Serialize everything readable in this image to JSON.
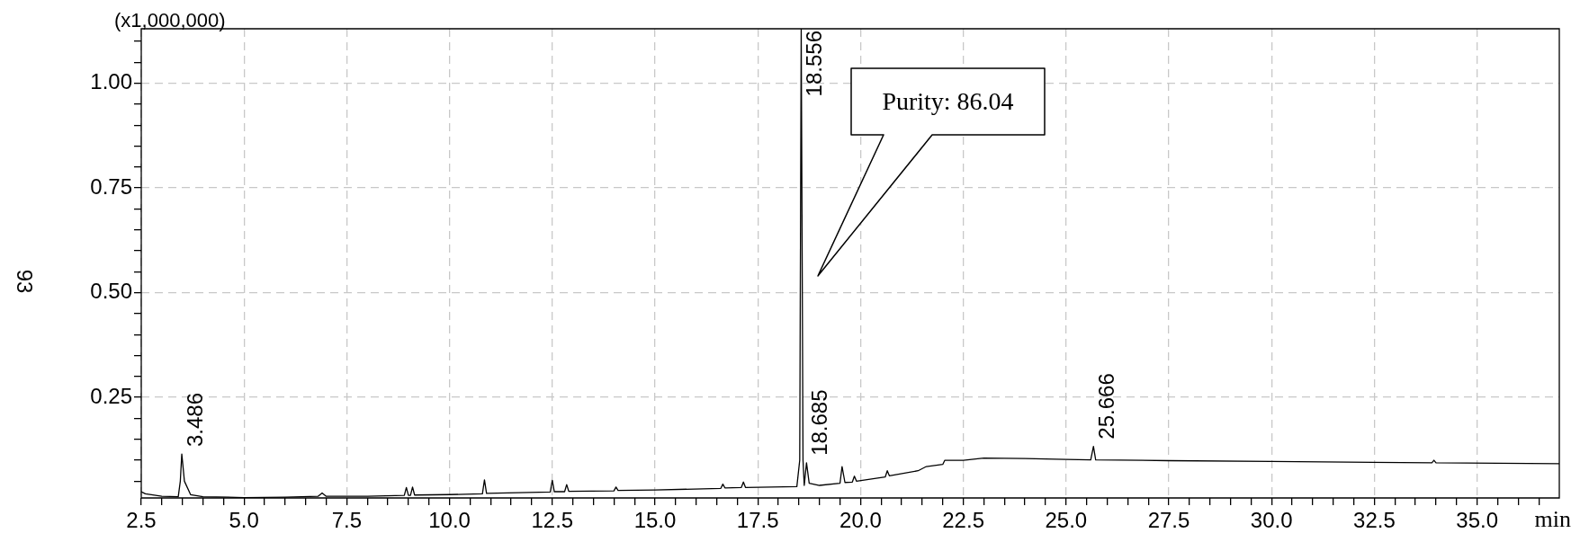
{
  "chart_data": {
    "type": "line",
    "xlabel": "min",
    "ylabel": "93",
    "x": [
      2.5,
      2.6,
      3.0,
      3.4,
      3.45,
      3.486,
      3.55,
      3.7,
      4.0,
      5.0,
      6.0,
      6.8,
      6.9,
      7.0,
      8.0,
      8.9,
      8.95,
      9.0,
      9.05,
      9.1,
      9.15,
      10.0,
      10.8,
      10.85,
      10.9,
      12.45,
      12.5,
      12.55,
      12.8,
      12.85,
      12.9,
      14.0,
      14.05,
      14.1,
      15.0,
      16.6,
      16.65,
      16.7,
      17.1,
      17.15,
      17.2,
      18.45,
      18.52,
      18.556,
      18.6,
      18.63,
      18.685,
      18.75,
      19.0,
      19.5,
      19.55,
      19.62,
      19.8,
      19.85,
      19.9,
      20.6,
      20.65,
      20.7,
      21.4,
      21.6,
      22.0,
      22.05,
      22.5,
      23.0,
      24.0,
      25.0,
      25.6,
      25.666,
      25.72,
      27.5,
      30.0,
      33.9,
      33.95,
      34.0,
      37.0
    ],
    "series": [
      {
        "color": "#000000",
        "values": [
          0.025,
          0.02,
          0.014,
          0.013,
          0.05,
          0.115,
          0.05,
          0.018,
          0.013,
          0.011,
          0.012,
          0.014,
          0.022,
          0.014,
          0.014,
          0.016,
          0.035,
          0.016,
          0.016,
          0.036,
          0.017,
          0.018,
          0.02,
          0.053,
          0.021,
          0.024,
          0.052,
          0.025,
          0.025,
          0.042,
          0.026,
          0.027,
          0.036,
          0.028,
          0.029,
          0.033,
          0.043,
          0.034,
          0.035,
          0.048,
          0.035,
          0.037,
          0.1,
          1.13,
          0.1,
          0.04,
          0.094,
          0.045,
          0.04,
          0.045,
          0.085,
          0.047,
          0.048,
          0.062,
          0.05,
          0.06,
          0.075,
          0.063,
          0.075,
          0.085,
          0.09,
          0.1,
          0.1,
          0.105,
          0.104,
          0.102,
          0.101,
          0.133,
          0.101,
          0.099,
          0.097,
          0.094,
          0.1,
          0.094,
          0.092
        ]
      }
    ],
    "xlim": [
      2.5,
      37.0
    ],
    "xticks": [
      2.5,
      {
        "value": 3,
        "label": null
      },
      {
        "value": 3.5,
        "label": null
      },
      {
        "value": 4,
        "label": null
      },
      {
        "value": 4.5,
        "label": null
      },
      {
        "value": 5,
        "label": "5.0"
      },
      {
        "value": 5.5,
        "label": null
      },
      {
        "value": 6,
        "label": null
      },
      {
        "value": 6.5,
        "label": null
      },
      {
        "value": 7,
        "label": null
      },
      7.5,
      {
        "value": 8,
        "label": null
      },
      {
        "value": 8.5,
        "label": null
      },
      {
        "value": 9,
        "label": null
      },
      {
        "value": 9.5,
        "label": null
      },
      {
        "value": 10,
        "label": "10.0"
      },
      {
        "value": 10.5,
        "label": null
      },
      {
        "value": 11,
        "label": null
      },
      {
        "value": 11.5,
        "label": null
      },
      {
        "value": 12,
        "label": null
      },
      12.5,
      {
        "value": 13,
        "label": null
      },
      {
        "value": 13.5,
        "label": null
      },
      {
        "value": 14,
        "label": null
      },
      {
        "value": 14.5,
        "label": null
      },
      {
        "value": 15,
        "label": "15.0"
      },
      {
        "value": 15.5,
        "label": null
      },
      {
        "value": 16,
        "label": null
      },
      {
        "value": 16.5,
        "label": null
      },
      {
        "value": 17,
        "label": null
      },
      17.5,
      {
        "value": 18,
        "label": null
      },
      {
        "value": 18.5,
        "label": null
      },
      {
        "value": 19,
        "label": null
      },
      {
        "value": 19.5,
        "label": null
      },
      {
        "value": 20,
        "label": "20.0"
      },
      {
        "value": 20.5,
        "label": null
      },
      {
        "value": 21,
        "label": null
      },
      {
        "value": 21.5,
        "label": null
      },
      {
        "value": 22,
        "label": null
      },
      22.5,
      {
        "value": 23,
        "label": null
      },
      {
        "value": 23.5,
        "label": null
      },
      {
        "value": 24,
        "label": null
      },
      {
        "value": 24.5,
        "label": null
      },
      {
        "value": 25,
        "label": "25.0"
      },
      {
        "value": 25.5,
        "label": null
      },
      {
        "value": 26,
        "label": null
      },
      {
        "value": 26.5,
        "label": null
      },
      {
        "value": 27,
        "label": null
      },
      27.5,
      {
        "value": 28,
        "label": null
      },
      {
        "value": 28.5,
        "label": null
      },
      {
        "value": 29,
        "label": null
      },
      {
        "value": 29.5,
        "label": null
      },
      {
        "value": 30,
        "label": "30.0"
      },
      {
        "value": 30.5,
        "label": null
      },
      {
        "value": 31,
        "label": null
      },
      {
        "value": 31.5,
        "label": null
      },
      {
        "value": 32,
        "label": null
      },
      32.5,
      {
        "value": 33,
        "label": null
      },
      {
        "value": 33.5,
        "label": null
      },
      {
        "value": 34,
        "label": null
      },
      {
        "value": 34.5,
        "label": null
      },
      {
        "value": 35,
        "label": "35.0"
      },
      {
        "value": 35.5,
        "label": null
      },
      {
        "value": 36,
        "label": null
      },
      {
        "value": 36.5,
        "label": null
      }
    ],
    "ylim": [
      0.01,
      1.13
    ],
    "yticks": [
      {
        "value": 0.05,
        "label": null
      },
      {
        "value": 0.1,
        "label": null
      },
      {
        "value": 0.15,
        "label": null
      },
      {
        "value": 0.2,
        "label": null
      },
      0.25,
      {
        "value": 0.3,
        "label": null
      },
      {
        "value": 0.35,
        "label": null
      },
      {
        "value": 0.4,
        "label": null
      },
      {
        "value": 0.45,
        "label": null
      },
      {
        "value": 0.5,
        "label": "0.50"
      },
      {
        "value": 0.55,
        "label": null
      },
      {
        "value": 0.6,
        "label": null
      },
      {
        "value": 0.65,
        "label": null
      },
      {
        "value": 0.7,
        "label": null
      },
      0.75,
      {
        "value": 0.8,
        "label": null
      },
      {
        "value": 0.85,
        "label": null
      },
      {
        "value": 0.9,
        "label": null
      },
      {
        "value": 0.95,
        "label": null
      },
      {
        "value": 1,
        "label": "1.00"
      },
      {
        "value": 1.05,
        "label": null
      },
      {
        "value": 1.1,
        "label": null
      }
    ],
    "grid": true,
    "legend": false,
    "marker": "none",
    "line_style": "solid",
    "annotations": [
      "(x1,000,000)",
      "Purity: 86.04",
      {
        "text": "3.486",
        "x": 3.486,
        "y": 0.115
      },
      {
        "text": "18.556",
        "x": 18.556,
        "y": 1.13
      },
      {
        "text": "18.685",
        "x": 18.685,
        "y": 0.094
      },
      {
        "text": "25.666",
        "x": 25.666,
        "y": 0.133
      }
    ]
  }
}
